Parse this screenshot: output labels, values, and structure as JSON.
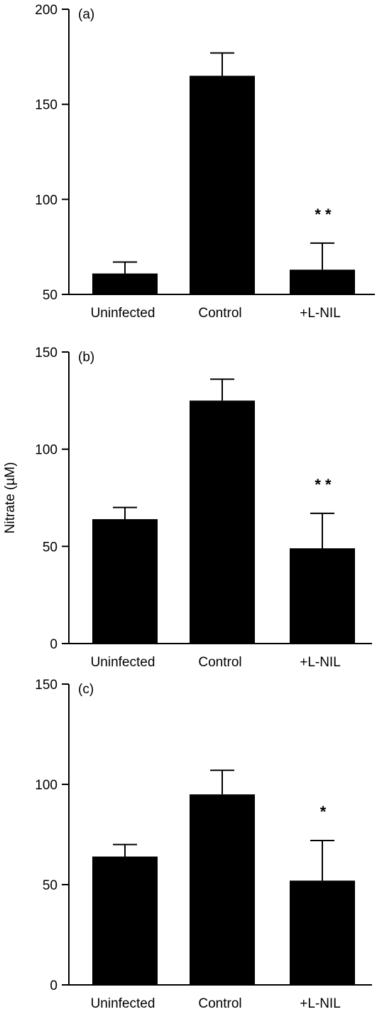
{
  "y_axis_label": "Nitrate (µM)",
  "chart_data": [
    {
      "type": "bar",
      "panel_label": "(a)",
      "categories": [
        "Uninfected",
        "Control",
        "+L-NIL"
      ],
      "values": [
        61,
        165,
        63
      ],
      "error_bars": [
        6,
        12,
        14
      ],
      "significance": [
        "",
        "",
        "* *"
      ],
      "yticks": [
        50,
        100,
        150,
        200
      ],
      "ylim": [
        50,
        200
      ],
      "ylabel": "",
      "xlabel": "",
      "grid": false,
      "bar_color": "#000000"
    },
    {
      "type": "bar",
      "panel_label": "(b)",
      "categories": [
        "Uninfected",
        "Control",
        "+L-NIL"
      ],
      "values": [
        64,
        125,
        49
      ],
      "error_bars": [
        6,
        11,
        18
      ],
      "significance": [
        "",
        "",
        "* *"
      ],
      "yticks": [
        0,
        50,
        100,
        150
      ],
      "ylim": [
        0,
        150
      ],
      "ylabel": "Nitrate (µM)",
      "xlabel": "",
      "grid": false,
      "bar_color": "#000000"
    },
    {
      "type": "bar",
      "panel_label": "(c)",
      "categories": [
        "Uninfected",
        "Control",
        "+L-NIL"
      ],
      "values": [
        64,
        95,
        52
      ],
      "error_bars": [
        6,
        12,
        20
      ],
      "significance": [
        "",
        "",
        "*"
      ],
      "yticks": [
        0,
        50,
        100,
        150
      ],
      "ylim": [
        0,
        150
      ],
      "ylabel": "",
      "xlabel": "",
      "grid": false,
      "bar_color": "#000000"
    }
  ]
}
